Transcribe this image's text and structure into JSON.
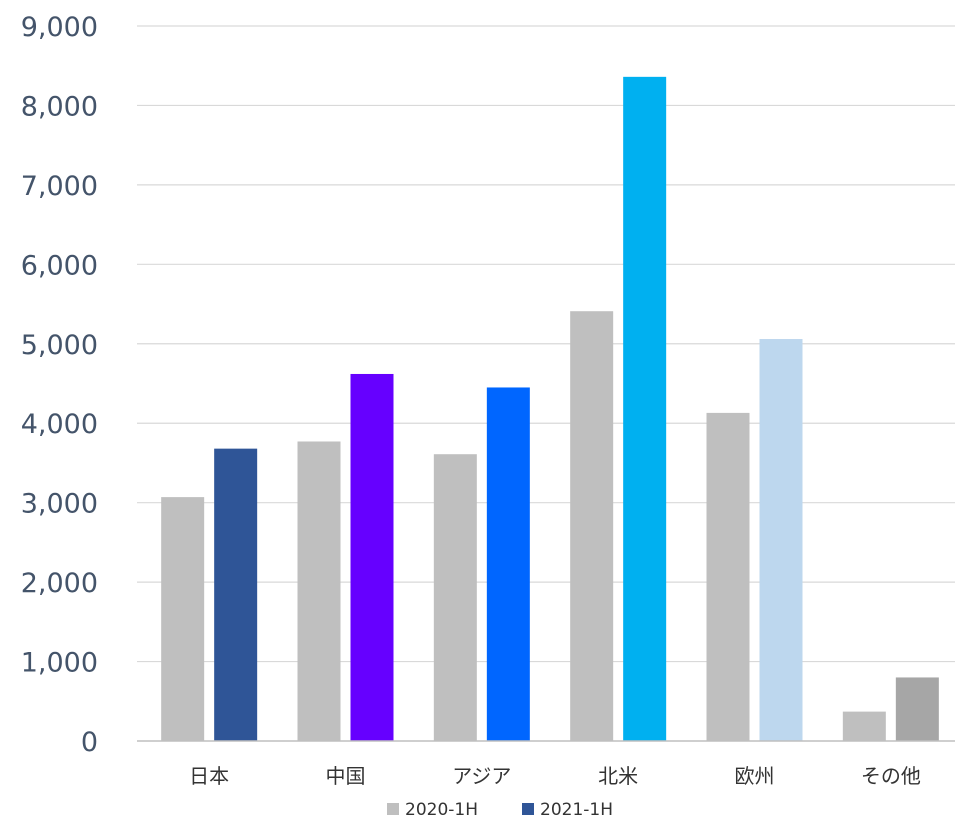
{
  "chart_data": {
    "type": "bar",
    "categories": [
      "日本",
      "中国",
      "アジア",
      "北米",
      "欧州",
      "その他"
    ],
    "series": [
      {
        "name": "2020-1H",
        "values": [
          3070,
          3770,
          3610,
          5410,
          4130,
          370
        ],
        "color": "#bfbfbf"
      },
      {
        "name": "2021-1H",
        "values": [
          3680,
          4620,
          4450,
          8360,
          5060,
          800
        ],
        "color": "#2f5597"
      }
    ],
    "bar_colors_2021": [
      "#2f5597",
      "#6600ff",
      "#0066ff",
      "#00b0f0",
      "#bdd7ee",
      "#a6a6a6"
    ],
    "yticks": [
      "0",
      "1,000",
      "2,000",
      "3,000",
      "4,000",
      "5,000",
      "6,000",
      "7,000",
      "8,000",
      "9,000"
    ],
    "ylim": [
      0,
      9000
    ],
    "grid": true,
    "legend": "bottom",
    "title": "",
    "xlabel": "",
    "ylabel": ""
  }
}
